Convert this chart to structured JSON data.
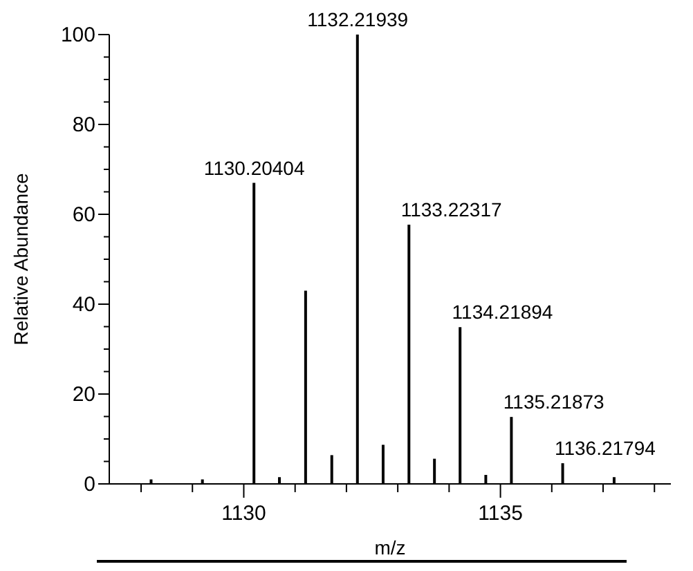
{
  "chart_data": {
    "type": "bar",
    "xlabel": "m/z",
    "ylabel": "Relative Abundance",
    "x": [
      1128.2,
      1129.2,
      1130.20404,
      1130.7,
      1131.21,
      1131.72,
      1132.21939,
      1132.72,
      1133.22317,
      1133.72,
      1134.21894,
      1134.72,
      1135.21873,
      1136.21794,
      1137.22
    ],
    "series": [
      {
        "color": "#000000",
        "values": [
          1,
          1,
          67,
          1.5,
          43,
          6.4,
          100,
          8.7,
          57.7,
          5.6,
          34.9,
          2,
          14.9,
          4.6,
          1.5
        ]
      }
    ],
    "xlim": [
      1127.38,
      1138.32
    ],
    "xticks": [
      {
        "value": 1128,
        "label": null
      },
      {
        "value": 1129,
        "label": null
      },
      1130,
      {
        "value": 1131,
        "label": null
      },
      {
        "value": 1132,
        "label": null
      },
      {
        "value": 1133,
        "label": null
      },
      {
        "value": 1134,
        "label": null
      },
      1135,
      {
        "value": 1136,
        "label": null
      },
      {
        "value": 1137,
        "label": null
      },
      {
        "value": 1138,
        "label": null
      }
    ],
    "ylim": [
      0,
      100
    ],
    "yticks": [
      0,
      {
        "value": 5,
        "label": null
      },
      {
        "value": 10,
        "label": null
      },
      {
        "value": 15,
        "label": null
      },
      20,
      {
        "value": 25,
        "label": null
      },
      {
        "value": 30,
        "label": null
      },
      {
        "value": 35,
        "label": null
      },
      40,
      {
        "value": 45,
        "label": null
      },
      {
        "value": 50,
        "label": null
      },
      {
        "value": 55,
        "label": null
      },
      60,
      {
        "value": 65,
        "label": null
      },
      {
        "value": 70,
        "label": null
      },
      {
        "value": 75,
        "label": null
      },
      80,
      {
        "value": 85,
        "label": null
      },
      {
        "value": 90,
        "label": null
      },
      {
        "value": 95,
        "label": null
      },
      100
    ],
    "annotations": [
      {
        "text": "1130.20404",
        "x": 1130.20404,
        "y": 67
      },
      {
        "text": "1132.21939",
        "x": 1132.21939,
        "y": 100
      },
      {
        "text": "1133.22317",
        "x": 1133.22317,
        "y": 57.7
      },
      {
        "text": "1134.21894",
        "x": 1134.21894,
        "y": 34.9
      },
      {
        "text": "1135.21873",
        "x": 1135.21873,
        "y": 14.9
      },
      {
        "text": "1136.21794",
        "x": 1136.21794,
        "y": 4.6
      }
    ]
  }
}
